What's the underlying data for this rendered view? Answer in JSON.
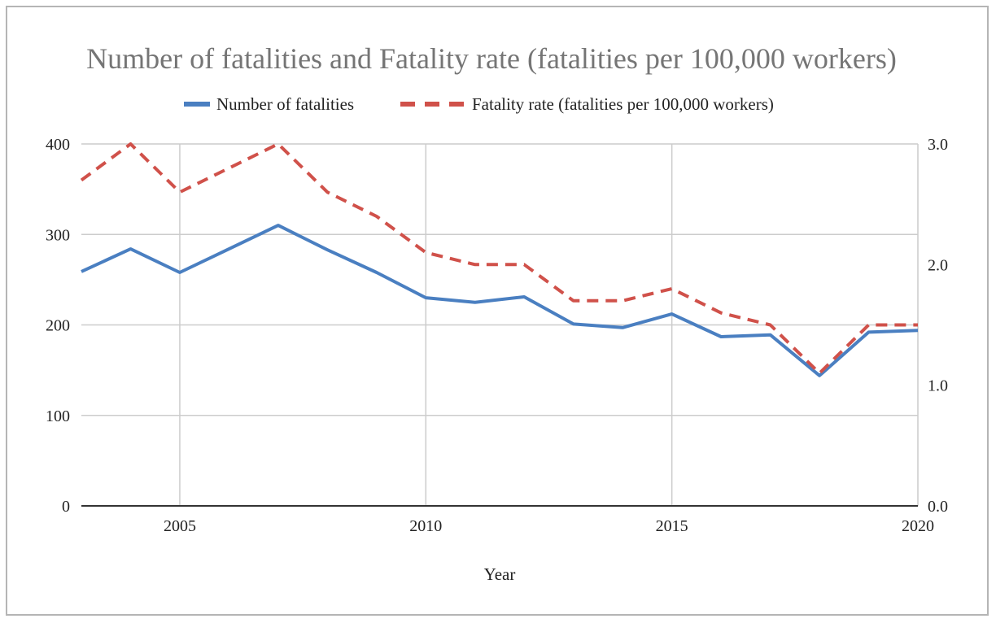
{
  "chart_data": {
    "type": "line",
    "title": "Number of fatalities and Fatality rate (fatalities per 100,000 workers)",
    "xlabel": "Year",
    "ylabel": "",
    "ylabel_right": "",
    "x": [
      2003,
      2004,
      2005,
      2006,
      2007,
      2008,
      2009,
      2010,
      2011,
      2012,
      2013,
      2014,
      2015,
      2016,
      2017,
      2018,
      2019,
      2020
    ],
    "xlim": [
      2003,
      2020
    ],
    "ylim": [
      0,
      400
    ],
    "ylim_right": [
      0,
      3.0
    ],
    "x_ticks": [
      "2005",
      "2010",
      "2015",
      "2020"
    ],
    "y_ticks_left": [
      "0",
      "100",
      "200",
      "300",
      "400"
    ],
    "y_ticks_right": [
      "0.0",
      "1.0",
      "2.0",
      "3.0"
    ],
    "grid": true,
    "legend_position": "top",
    "series": [
      {
        "name": "Number of fatalities",
        "axis": "left",
        "style": "solid",
        "color": "#4a7fc1",
        "values": [
          259,
          284,
          258,
          284,
          310,
          283,
          258,
          230,
          225,
          231,
          201,
          197,
          212,
          187,
          189,
          144,
          192,
          194
        ]
      },
      {
        "name": "Fatality rate (fatalities per 100,000 workers)",
        "axis": "right",
        "style": "dashed",
        "color": "#d0514a",
        "values": [
          2.7,
          3.0,
          2.6,
          2.8,
          3.0,
          2.6,
          2.4,
          2.1,
          2.0,
          2.0,
          1.7,
          1.7,
          1.8,
          1.6,
          1.5,
          1.1,
          1.5,
          1.5
        ]
      }
    ]
  }
}
